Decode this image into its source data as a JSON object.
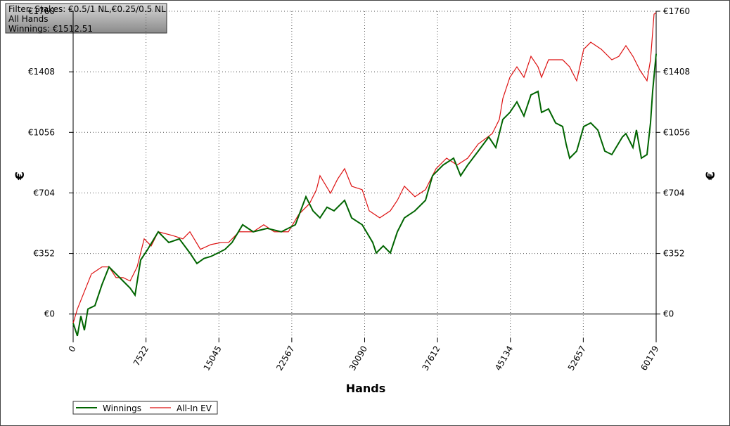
{
  "chart_data": {
    "type": "line",
    "info_lines": [
      "Filter: Stakes: €0.5/1 NL,€0.25/0.5 NL",
      "All Hands",
      "Winnings: €1512.51"
    ],
    "xlabel": "Hands",
    "ylabel": "€",
    "y2label": "€",
    "xlim": [
      0,
      60179
    ],
    "xticks": [
      0,
      7522,
      15045,
      22567,
      30090,
      37612,
      45134,
      52657,
      60179
    ],
    "ylim": [
      -140,
      1760
    ],
    "yticks": [
      {
        "value": 0,
        "label": "€0"
      },
      {
        "value": 352,
        "label": "€352"
      },
      {
        "value": 704,
        "label": "€704"
      },
      {
        "value": 1056,
        "label": "€1056"
      },
      {
        "value": 1408,
        "label": "€1408"
      },
      {
        "value": 1760,
        "label": "€1760"
      }
    ],
    "grid": true,
    "legend": "bottom-left",
    "series": [
      {
        "name": "Winnings",
        "color": "#006400",
        "x": [
          0,
          436,
          798,
          1161,
          1524,
          2250,
          2976,
          3702,
          4428,
          5154,
          5880,
          6388,
          6969,
          7695,
          8784,
          9873,
          10962,
          12051,
          12776,
          13502,
          14228,
          14954,
          15680,
          16406,
          17495,
          18583,
          20035,
          21487,
          22939,
          24028,
          24754,
          25479,
          26205,
          26931,
          28020,
          28746,
          29835,
          30924,
          31287,
          32013,
          32739,
          33465,
          34191,
          35280,
          36369,
          37095,
          38183,
          39272,
          39998,
          40724,
          41813,
          42902,
          43628,
          44354,
          45080,
          45805,
          46531,
          47257,
          47983,
          48346,
          49072,
          49797,
          50523,
          50886,
          51249,
          51975,
          52701,
          53427,
          54153,
          54879,
          55604,
          56693,
          57056,
          57782,
          58145,
          58653,
          59234,
          59597,
          59815,
          60179
        ],
        "values": [
          -53,
          -127,
          -12,
          -94,
          29,
          49,
          171,
          274,
          233,
          192,
          151,
          110,
          314,
          376,
          478,
          416,
          437,
          355,
          294,
          323,
          335,
          355,
          376,
          416,
          519,
          478,
          498,
          478,
          519,
          682,
          600,
          559,
          621,
          600,
          661,
          559,
          519,
          416,
          355,
          396,
          355,
          478,
          559,
          600,
          661,
          804,
          866,
          906,
          804,
          866,
          947,
          1029,
          968,
          1131,
          1172,
          1233,
          1151,
          1274,
          1294,
          1172,
          1192,
          1111,
          1090,
          988,
          906,
          947,
          1090,
          1111,
          1070,
          947,
          927,
          1029,
          1049,
          968,
          1070,
          906,
          927,
          1111,
          1294,
          1512.51
        ]
      },
      {
        "name": "All-In EV",
        "color": "#dd1111",
        "x": [
          0,
          436,
          1161,
          1887,
          2976,
          3702,
          4428,
          5154,
          5880,
          6606,
          7332,
          8057,
          8784,
          10235,
          11324,
          12051,
          13139,
          14228,
          15317,
          16043,
          17131,
          18583,
          19672,
          20761,
          22213,
          23302,
          24391,
          25117,
          25479,
          26568,
          27294,
          28020,
          28746,
          29835,
          30561,
          31650,
          32739,
          33465,
          34191,
          35280,
          36369,
          37457,
          38546,
          39635,
          40724,
          41813,
          43265,
          43990,
          44354,
          45080,
          45805,
          46531,
          47257,
          47983,
          48346,
          49072,
          50523,
          51249,
          51975,
          52701,
          53427,
          54516,
          55604,
          56330,
          57056,
          57782,
          58508,
          59234,
          59597,
          59960,
          60179
        ],
        "values": [
          -53,
          29,
          131,
          233,
          274,
          274,
          212,
          212,
          192,
          274,
          437,
          396,
          478,
          457,
          437,
          478,
          376,
          404,
          416,
          416,
          478,
          478,
          519,
          478,
          478,
          580,
          641,
          723,
          804,
          702,
          784,
          845,
          743,
          723,
          600,
          559,
          600,
          661,
          743,
          682,
          723,
          845,
          906,
          866,
          906,
          988,
          1049,
          1131,
          1253,
          1376,
          1437,
          1376,
          1498,
          1437,
          1376,
          1478,
          1478,
          1437,
          1356,
          1539,
          1580,
          1539,
          1478,
          1498,
          1560,
          1498,
          1417,
          1356,
          1478,
          1743,
          1752
        ]
      }
    ]
  }
}
